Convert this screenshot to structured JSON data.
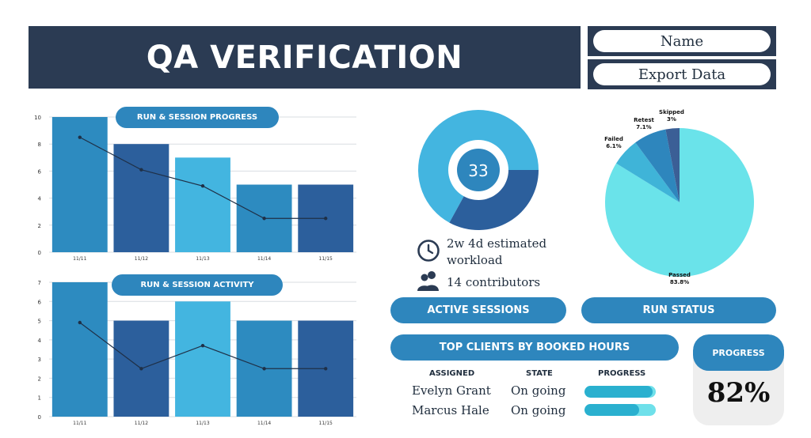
{
  "header": {
    "title": "QA VERIFICATION"
  },
  "side_buttons": {
    "name": "Name",
    "export": "Export Data"
  },
  "colors": {
    "navy": "#2b3b53",
    "pill_blue": "#2e86bd",
    "bar_a": "#2d8bc0",
    "bar_b": "#2c5f9c",
    "bar_c": "#43b5e0",
    "pie_passed": "#6ae3ea"
  },
  "icons": {
    "clock": "clock-icon",
    "people": "people-icon"
  },
  "summary": {
    "donut_value": "33",
    "workload_line1": "2w 4d estimated",
    "workload_line2": "workload",
    "contributors": "14 contributors"
  },
  "buttons": {
    "active_sessions": "ACTIVE SESSIONS",
    "run_status": "RUN STATUS",
    "top_clients": "TOP CLIENTS BY BOOKED HOURS"
  },
  "table": {
    "headers": [
      "ASSIGNED",
      "STATE",
      "PROGRESS"
    ],
    "rows": [
      {
        "assigned": "Evelyn Grant",
        "state": "On going",
        "progress": 0.96
      },
      {
        "assigned": "Marcus Hale",
        "state": "On going",
        "progress": 0.77
      }
    ]
  },
  "progress_card": {
    "label": "PROGRESS",
    "value": "82%"
  },
  "chart_data": [
    {
      "type": "bar",
      "title": "RUN & SESSION PROGRESS",
      "categories": [
        "11/11",
        "11/12",
        "11/13",
        "11/14",
        "11/15"
      ],
      "series": [
        {
          "type": "bar",
          "values": [
            10,
            8,
            7,
            5,
            5
          ]
        },
        {
          "type": "line",
          "values": [
            8.5,
            6.1,
            4.9,
            2.5,
            2.5
          ]
        }
      ],
      "ylim": [
        0,
        10
      ],
      "yticks": [
        0,
        2,
        4,
        6,
        8,
        10
      ],
      "grid": true
    },
    {
      "type": "bar",
      "title": "RUN & SESSION ACTIVITY",
      "categories": [
        "11/11",
        "11/12",
        "11/13",
        "11/14",
        "11/15"
      ],
      "series": [
        {
          "type": "bar",
          "values": [
            7,
            5,
            6,
            5,
            5
          ]
        },
        {
          "type": "line",
          "values": [
            4.9,
            2.5,
            3.7,
            2.5,
            2.5
          ]
        }
      ],
      "ylim": [
        0,
        7
      ],
      "yticks": [
        0,
        1,
        2,
        3,
        4,
        5,
        6,
        7
      ],
      "grid": true
    },
    {
      "type": "pie",
      "variant": "donut",
      "values": [
        67,
        33
      ],
      "center_label": "33"
    },
    {
      "type": "pie",
      "slices": [
        {
          "label": "Passed",
          "value": 83.8,
          "display": "83.8%"
        },
        {
          "label": "Failed",
          "value": 6.1,
          "display": "6.1%"
        },
        {
          "label": "Retest",
          "value": 7.1,
          "display": "7.1%"
        },
        {
          "label": "Skipped",
          "value": 3,
          "display": "3%"
        }
      ]
    }
  ]
}
